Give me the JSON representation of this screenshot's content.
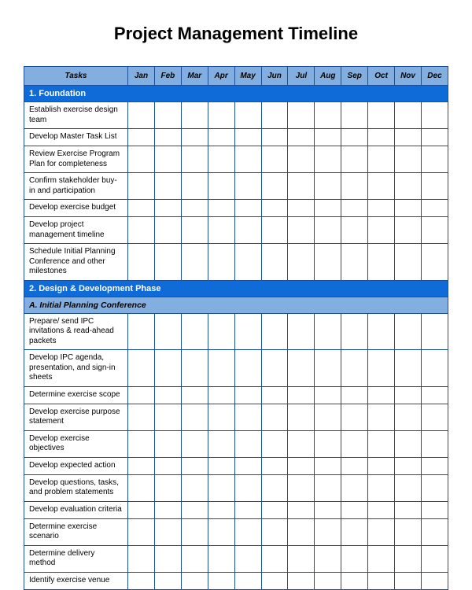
{
  "title": "Project Management Timeline",
  "columns": {
    "tasks_header": "Tasks",
    "months": [
      "Jan",
      "Feb",
      "Mar",
      "Apr",
      "May",
      "Jun",
      "Jul",
      "Aug",
      "Sep",
      "Oct",
      "Nov",
      "Dec"
    ]
  },
  "rows": [
    {
      "type": "section",
      "label": "1. Foundation"
    },
    {
      "type": "task",
      "label": "Establish exercise design team"
    },
    {
      "type": "task",
      "label": "Develop Master Task List"
    },
    {
      "type": "task",
      "label": "Review Exercise Program Plan for completeness"
    },
    {
      "type": "task",
      "label": "Confirm stakeholder buy-in and participation"
    },
    {
      "type": "task",
      "label": "Develop exercise budget"
    },
    {
      "type": "task",
      "label": "Develop project management timeline"
    },
    {
      "type": "task",
      "label": "Schedule Initial Planning Conference and other milestones"
    },
    {
      "type": "section",
      "label": "2. Design & Development Phase"
    },
    {
      "type": "subsection",
      "label": "A. Initial Planning Conference"
    },
    {
      "type": "task",
      "label": "Prepare/ send IPC invitations & read-ahead packets"
    },
    {
      "type": "task",
      "label": "Develop IPC agenda, presentation, and sign-in sheets"
    },
    {
      "type": "task",
      "label": "Determine exercise scope"
    },
    {
      "type": "task",
      "label": "Develop exercise purpose statement"
    },
    {
      "type": "task",
      "label": "Develop exercise objectives"
    },
    {
      "type": "task",
      "label": "Develop expected action"
    },
    {
      "type": "task",
      "label": "Develop questions, tasks, and problem statements"
    },
    {
      "type": "task",
      "label": "Develop evaluation criteria"
    },
    {
      "type": "task",
      "label": "Determine exercise scenario"
    },
    {
      "type": "task",
      "label": "Determine delivery method"
    },
    {
      "type": "task",
      "label": "Identify exercise venue"
    }
  ],
  "styling": {
    "border_color": "#1c4e9a",
    "header_bg": "#82aee0",
    "section_bg": "#0e6bd8",
    "section_fg": "#ffffff",
    "subsection_bg": "#82aee0",
    "cell_bg": "#ffffff",
    "page_bg": "#ffffff",
    "title_fontsize": 22,
    "body_fontsize": 10,
    "font_family": "Arial"
  }
}
